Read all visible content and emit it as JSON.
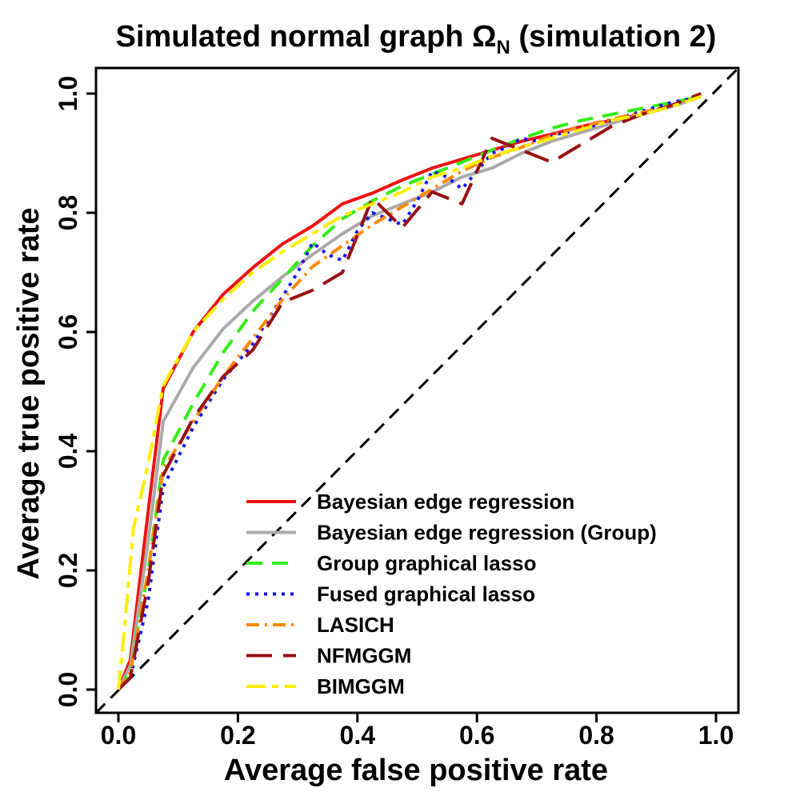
{
  "chart_data": {
    "type": "line",
    "title_main": "Simulated normal graph Ω",
    "title_sub": "N",
    "title_suffix": " (simulation 2)",
    "xlabel": "Average false positive rate",
    "ylabel": "Average true positive rate",
    "xlim": [
      0.0,
      1.0
    ],
    "ylim": [
      0.0,
      1.0
    ],
    "xticks": [
      "0.0",
      "0.2",
      "0.4",
      "0.6",
      "0.8",
      "1.0"
    ],
    "yticks": [
      "0.0",
      "0.2",
      "0.4",
      "0.6",
      "0.8",
      "1.0"
    ],
    "reference_line": {
      "x": [
        0,
        1
      ],
      "y": [
        0,
        1
      ],
      "color": "#000000"
    },
    "legend_position": "bottom-right",
    "series": [
      {
        "name": "Bayesian edge regression",
        "color": "#ee1111",
        "dash": "solid",
        "x": [
          0,
          0.02,
          0.05,
          0.075,
          0.125,
          0.175,
          0.225,
          0.275,
          0.325,
          0.375,
          0.425,
          0.475,
          0.525,
          0.575,
          0.625,
          0.675,
          0.725,
          0.775,
          0.825,
          0.875,
          0.925,
          0.975
        ],
        "y": [
          0,
          0.05,
          0.3,
          0.505,
          0.6,
          0.663,
          0.708,
          0.748,
          0.778,
          0.815,
          0.833,
          0.855,
          0.875,
          0.89,
          0.905,
          0.92,
          0.932,
          0.945,
          0.955,
          0.965,
          0.978,
          0.995
        ]
      },
      {
        "name": "Bayesian edge regression (Group)",
        "color": "#aaaaaa",
        "dash": "solid",
        "x": [
          0,
          0.02,
          0.05,
          0.075,
          0.125,
          0.175,
          0.225,
          0.275,
          0.325,
          0.375,
          0.425,
          0.475,
          0.525,
          0.575,
          0.625,
          0.675,
          0.725,
          0.775,
          0.825,
          0.875,
          0.925,
          0.975
        ],
        "y": [
          0,
          0.04,
          0.25,
          0.45,
          0.54,
          0.605,
          0.652,
          0.693,
          0.73,
          0.765,
          0.795,
          0.815,
          0.835,
          0.86,
          0.875,
          0.9,
          0.92,
          0.935,
          0.95,
          0.965,
          0.978,
          0.995
        ]
      },
      {
        "name": "Group graphical lasso",
        "color": "#33ee11",
        "dash": "dashed",
        "x": [
          0,
          0.02,
          0.05,
          0.075,
          0.125,
          0.175,
          0.225,
          0.275,
          0.325,
          0.375,
          0.425,
          0.475,
          0.525,
          0.575,
          0.625,
          0.675,
          0.725,
          0.775,
          0.825,
          0.875,
          0.925,
          0.975
        ],
        "y": [
          0,
          0.03,
          0.2,
          0.385,
          0.48,
          0.565,
          0.635,
          0.69,
          0.745,
          0.79,
          0.82,
          0.845,
          0.865,
          0.885,
          0.905,
          0.925,
          0.942,
          0.955,
          0.965,
          0.975,
          0.985,
          0.995
        ]
      },
      {
        "name": "Fused graphical lasso",
        "color": "#1111ee",
        "dash": "dotted",
        "x": [
          0,
          0.02,
          0.05,
          0.075,
          0.125,
          0.175,
          0.225,
          0.275,
          0.3,
          0.325,
          0.35,
          0.375,
          0.4,
          0.425,
          0.45,
          0.475,
          0.5,
          0.525,
          0.55,
          0.575,
          0.6,
          0.625,
          0.65,
          0.675,
          0.7,
          0.725,
          0.775,
          0.825,
          0.875,
          0.925,
          0.975
        ],
        "y": [
          0,
          0.02,
          0.15,
          0.34,
          0.44,
          0.52,
          0.58,
          0.66,
          0.7,
          0.75,
          0.73,
          0.72,
          0.77,
          0.8,
          0.79,
          0.78,
          0.82,
          0.87,
          0.86,
          0.84,
          0.87,
          0.9,
          0.91,
          0.925,
          0.92,
          0.93,
          0.94,
          0.955,
          0.97,
          0.985,
          0.995
        ]
      },
      {
        "name": "LASICH",
        "color": "#ff8800",
        "dash": "dashdot",
        "x": [
          0,
          0.02,
          0.05,
          0.075,
          0.125,
          0.175,
          0.225,
          0.275,
          0.325,
          0.375,
          0.425,
          0.475,
          0.525,
          0.575,
          0.625,
          0.675,
          0.725,
          0.775,
          0.825,
          0.875,
          0.925,
          0.975
        ],
        "y": [
          0,
          0.03,
          0.2,
          0.37,
          0.45,
          0.525,
          0.59,
          0.655,
          0.71,
          0.745,
          0.78,
          0.81,
          0.84,
          0.87,
          0.893,
          0.91,
          0.93,
          0.945,
          0.957,
          0.968,
          0.98,
          0.995
        ]
      },
      {
        "name": "NFMGGM",
        "color": "#991111",
        "dash": "longdash",
        "x": [
          0,
          0.02,
          0.05,
          0.075,
          0.125,
          0.175,
          0.225,
          0.275,
          0.325,
          0.375,
          0.425,
          0.475,
          0.525,
          0.575,
          0.625,
          0.675,
          0.725,
          0.775,
          0.825,
          0.875,
          0.925,
          0.975
        ],
        "y": [
          0,
          0.02,
          0.18,
          0.36,
          0.455,
          0.525,
          0.57,
          0.65,
          0.67,
          0.7,
          0.825,
          0.775,
          0.835,
          0.815,
          0.925,
          0.905,
          0.885,
          0.915,
          0.945,
          0.965,
          0.98,
          1.0
        ]
      },
      {
        "name": "BIMGGM",
        "color": "#ffee00",
        "dash": "twodash",
        "x": [
          0,
          0.01,
          0.025,
          0.05,
          0.075,
          0.125,
          0.175,
          0.225,
          0.275,
          0.325,
          0.375,
          0.425,
          0.475,
          0.525,
          0.575,
          0.625,
          0.675,
          0.725,
          0.775,
          0.825,
          0.875,
          0.925,
          0.975
        ],
        "y": [
          0,
          0.1,
          0.27,
          0.38,
          0.51,
          0.6,
          0.655,
          0.7,
          0.735,
          0.765,
          0.795,
          0.815,
          0.835,
          0.86,
          0.875,
          0.895,
          0.91,
          0.925,
          0.94,
          0.955,
          0.965,
          0.978,
          0.995
        ]
      }
    ]
  }
}
